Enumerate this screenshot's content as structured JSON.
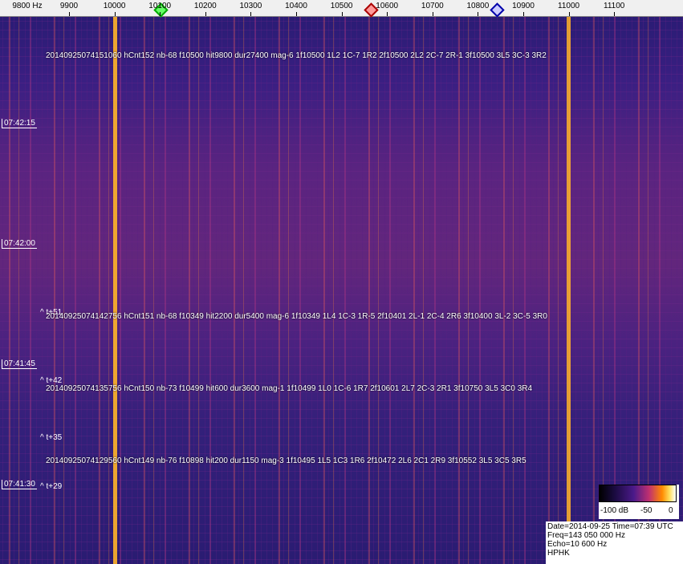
{
  "freq_axis": {
    "unit_label": "9800 Hz",
    "ticks": [
      "9900",
      "10000",
      "10100",
      "10200",
      "10300",
      "10400",
      "10500",
      "10600",
      "10700",
      "10800",
      "10900",
      "11000",
      "11100"
    ]
  },
  "time_labels": [
    "07:42:15",
    "07:42:00",
    "07:41:45",
    "07:41:30"
  ],
  "event_markers": [
    "^ t+51",
    "^ t+42",
    "^ t+35",
    "^ t+29"
  ],
  "detections": [
    "20140925074151060 hCnt152 nb-68 f10500 hit9800 dur27400 mag-6 1f10500 1L2 1C-7 1R2 2f10500 2L2 2C-7 2R-1 3f10500 3L5 3C-3 3R2",
    "20140925074142756 hCnt151 nb-68 f10349 hit2200 dur5400 mag-6 1f10349 1L4 1C-3 1R-5 2f10401 2L-1 2C-4 2R6 3f10400 3L-2 3C-5 3R0",
    "20140925074135756 hCnt150 nb-73 f10499 hit600 dur3600 mag-1 1f10499 1L0 1C-6 1R7 2f10601 2L7 2C-3 2R1 3f10750 3L5 3C0 3R4",
    "20140925074129560 hCnt149 nb-76 f10898 hit200 dur1150 mag-3 1f10495 1L5 1C3 1R6 2f10472 2L6 2C1 2R9 3f10552 3L5 3C5 3R5"
  ],
  "colorbar": {
    "labels": [
      "-100 dB",
      "-50",
      "0"
    ]
  },
  "info": [
    "Date=2014-09-25 Time=07:39 UTC",
    "Freq=143 050 000 Hz",
    "Echo=10 600 Hz",
    "HPHK"
  ]
}
